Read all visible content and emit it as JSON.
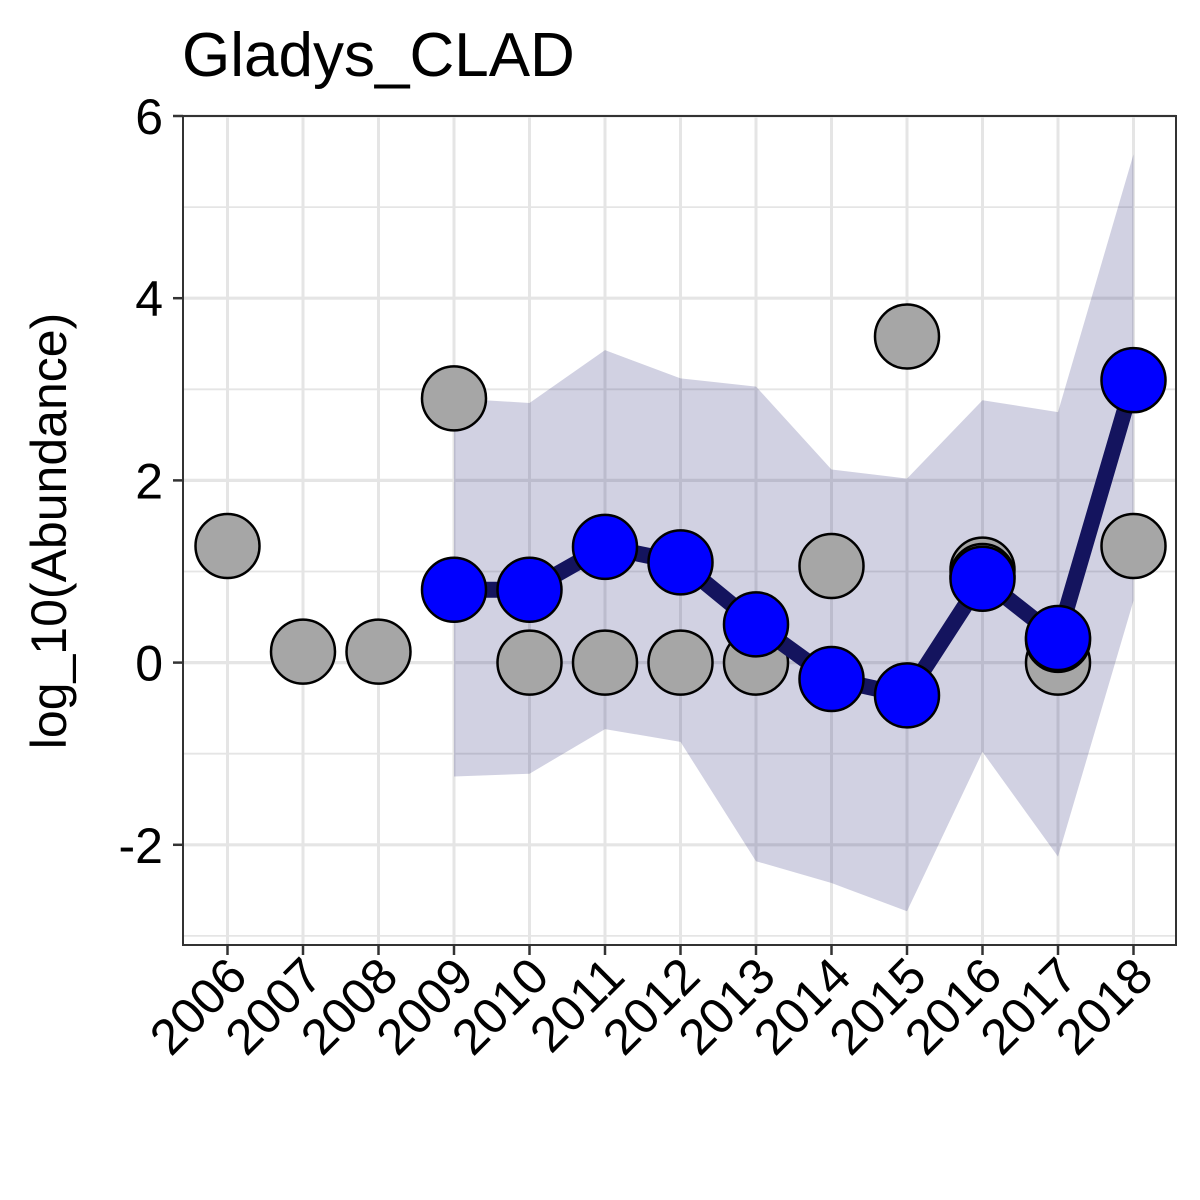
{
  "chart_data": {
    "type": "line",
    "title": "Gladys_CLAD",
    "xlabel": "",
    "ylabel": "log_10(Abundance)",
    "categories": [
      "2006",
      "2007",
      "2008",
      "2009",
      "2010",
      "2011",
      "2012",
      "2013",
      "2014",
      "2015",
      "2016",
      "2017",
      "2018"
    ],
    "ylim": [
      -3.1,
      6.0
    ],
    "yticks": [
      -2,
      0,
      2,
      4,
      6
    ],
    "ytick_labels": [
      "-2",
      "0",
      "2",
      "4",
      "6"
    ],
    "grid": true,
    "legend": "none",
    "observed": {
      "year": [
        "2006",
        "2007",
        "2008",
        "2009",
        "2010",
        "2011",
        "2012",
        "2013",
        "2014",
        "2015",
        "2016",
        "2016",
        "2017",
        "2017",
        "2018"
      ],
      "value": [
        1.28,
        0.12,
        0.12,
        2.9,
        0.0,
        0.0,
        0.0,
        0.0,
        1.06,
        3.58,
        1.02,
        0.95,
        0.0,
        0.25,
        1.28
      ]
    },
    "estimate": {
      "years": [
        "2009",
        "2010",
        "2011",
        "2012",
        "2013",
        "2014",
        "2015",
        "2016",
        "2017",
        "2018"
      ],
      "values": [
        0.8,
        0.8,
        1.27,
        1.1,
        0.42,
        -0.18,
        -0.36,
        0.92,
        0.27,
        3.1
      ],
      "lower": [
        -1.25,
        -1.22,
        -0.73,
        -0.87,
        -2.18,
        -2.42,
        -2.73,
        -0.98,
        -2.13,
        0.68
      ],
      "upper": [
        2.9,
        2.85,
        3.43,
        3.12,
        3.03,
        2.12,
        2.02,
        2.88,
        2.75,
        5.58
      ]
    },
    "colors": {
      "observed_fill": "#a6a6a6",
      "estimate_fill": "#0000ff",
      "estimate_line": "#14145e",
      "ribbon": "#1a1a6e",
      "grid": "#e5e5e5",
      "panel_border": "#333333"
    }
  }
}
